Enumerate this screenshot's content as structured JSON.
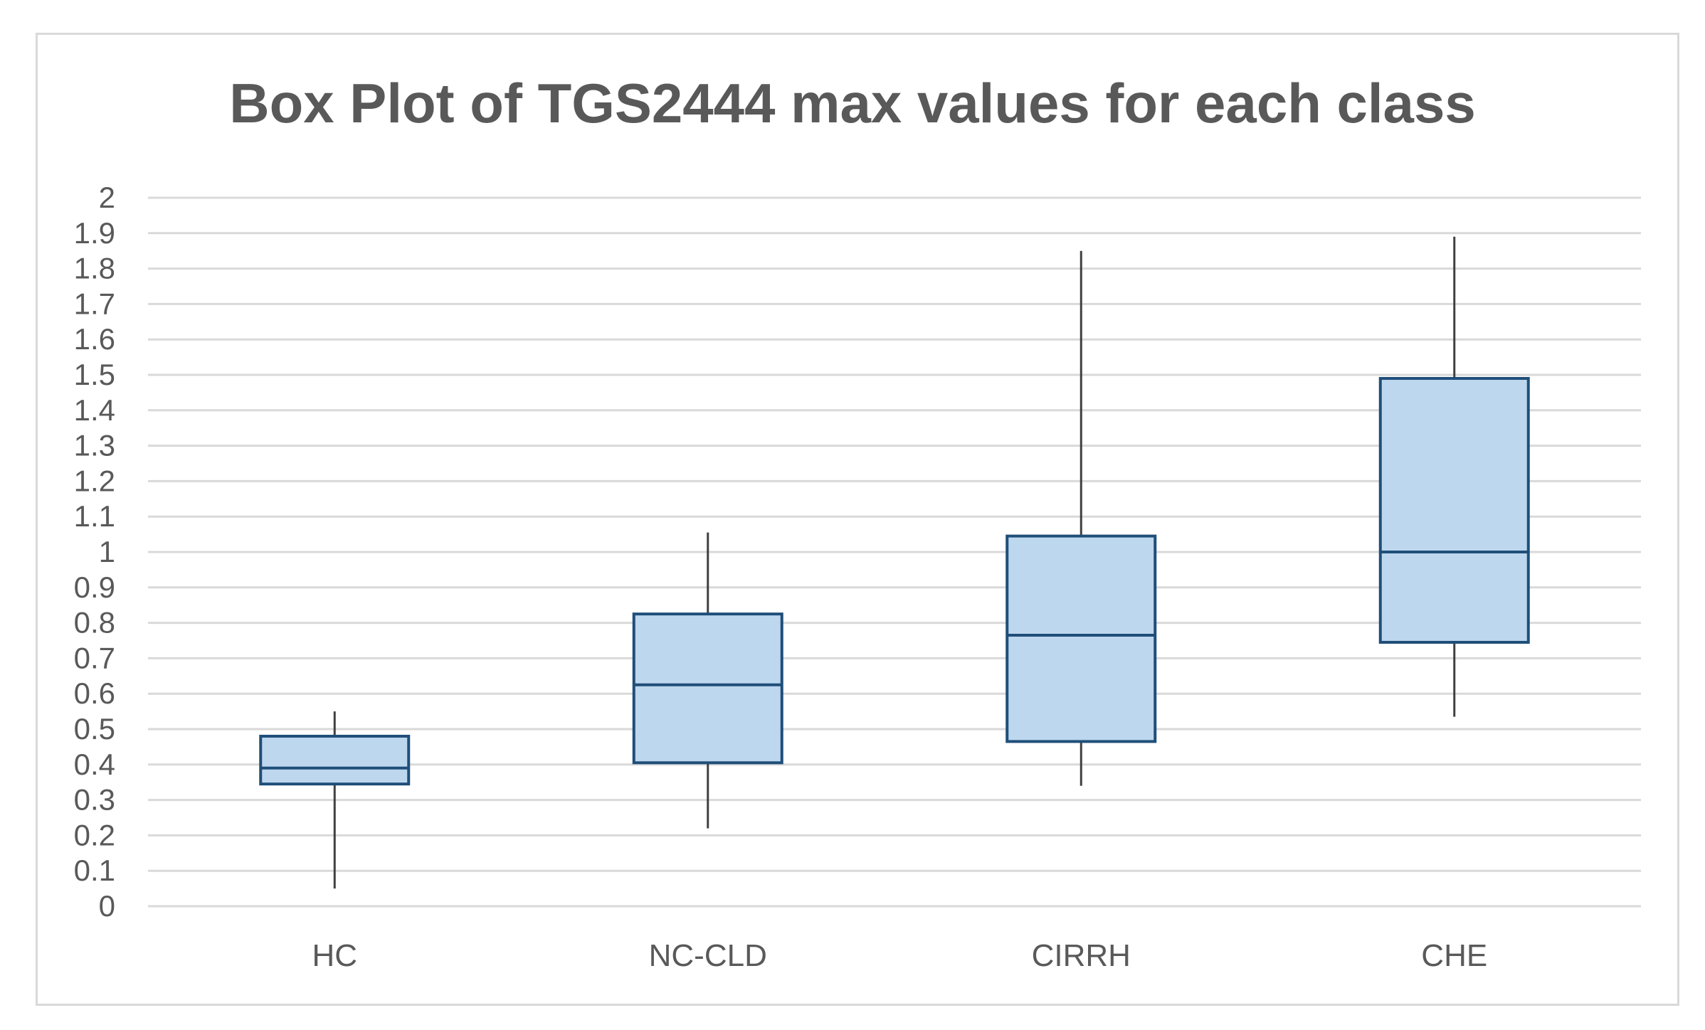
{
  "chart_data": {
    "type": "boxplot",
    "title": "Box Plot of TGS2444 max values for each class",
    "xlabel": "",
    "ylabel": "",
    "ylim": [
      0,
      2
    ],
    "y_ticks": [
      "0",
      "0.1",
      "0.2",
      "0.3",
      "0.4",
      "0.5",
      "0.6",
      "0.7",
      "0.8",
      "0.9",
      "1",
      "1.1",
      "1.2",
      "1.3",
      "1.4",
      "1.5",
      "1.6",
      "1.7",
      "1.8",
      "1.9",
      "2"
    ],
    "y_tick_values": [
      0,
      0.1,
      0.2,
      0.3,
      0.4,
      0.5,
      0.6,
      0.7,
      0.8,
      0.9,
      1.0,
      1.1,
      1.2,
      1.3,
      1.4,
      1.5,
      1.6,
      1.7,
      1.8,
      1.9,
      2.0
    ],
    "grid": true,
    "legend": "none",
    "categories": [
      "HC",
      "NC-CLD",
      "CIRRH",
      "CHE"
    ],
    "boxes": [
      {
        "category": "HC",
        "min": 0.05,
        "q1": 0.345,
        "median": 0.39,
        "q3": 0.48,
        "max": 0.55
      },
      {
        "category": "NC-CLD",
        "min": 0.22,
        "q1": 0.405,
        "median": 0.625,
        "q3": 0.825,
        "max": 1.055
      },
      {
        "category": "CIRRH",
        "min": 0.34,
        "q1": 0.465,
        "median": 0.765,
        "q3": 1.045,
        "max": 1.85
      },
      {
        "category": "CHE",
        "min": 0.535,
        "q1": 0.745,
        "median": 1.0,
        "q3": 1.49,
        "max": 1.89
      }
    ],
    "colors": {
      "box_fill": "#bdd7ee",
      "box_edge": "#1f4e79",
      "whisker": "#404040",
      "grid": "#d9d9d9",
      "text": "#595959"
    }
  }
}
